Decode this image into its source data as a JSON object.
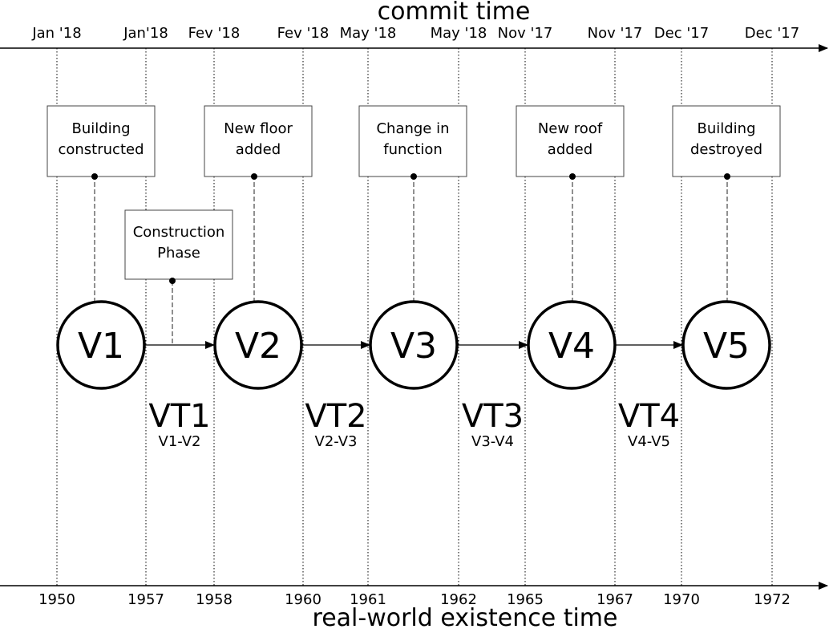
{
  "axes": {
    "commit_title": "commit time",
    "real_world_title": "real-world existence time",
    "commit_ticks": [
      "Jan '18",
      "Jan'18",
      "Fev '18",
      "Fev '18",
      "May '18",
      "May '18",
      "Nov '17",
      "Nov '17",
      "Dec '17",
      "Dec '17"
    ],
    "real_world_ticks": [
      "1950",
      "1957",
      "1958",
      "1960",
      "1961",
      "1962",
      "1965",
      "1967",
      "1970",
      "1972"
    ]
  },
  "events": [
    {
      "lines": [
        "Building",
        "constructed"
      ]
    },
    {
      "lines": [
        "New floor",
        "added"
      ]
    },
    {
      "lines": [
        "Change in",
        "function"
      ]
    },
    {
      "lines": [
        "New roof",
        "added"
      ]
    },
    {
      "lines": [
        "Building",
        "destroyed"
      ]
    }
  ],
  "construction_phase": {
    "lines": [
      "Construction",
      "Phase"
    ]
  },
  "versions": [
    "V1",
    "V2",
    "V3",
    "V4",
    "V5"
  ],
  "transitions": [
    {
      "label": "VT1",
      "range": "V1-V2"
    },
    {
      "label": "VT2",
      "range": "V2-V3"
    },
    {
      "label": "VT3",
      "range": "V3-V4"
    },
    {
      "label": "VT4",
      "range": "V4-V5"
    }
  ]
}
